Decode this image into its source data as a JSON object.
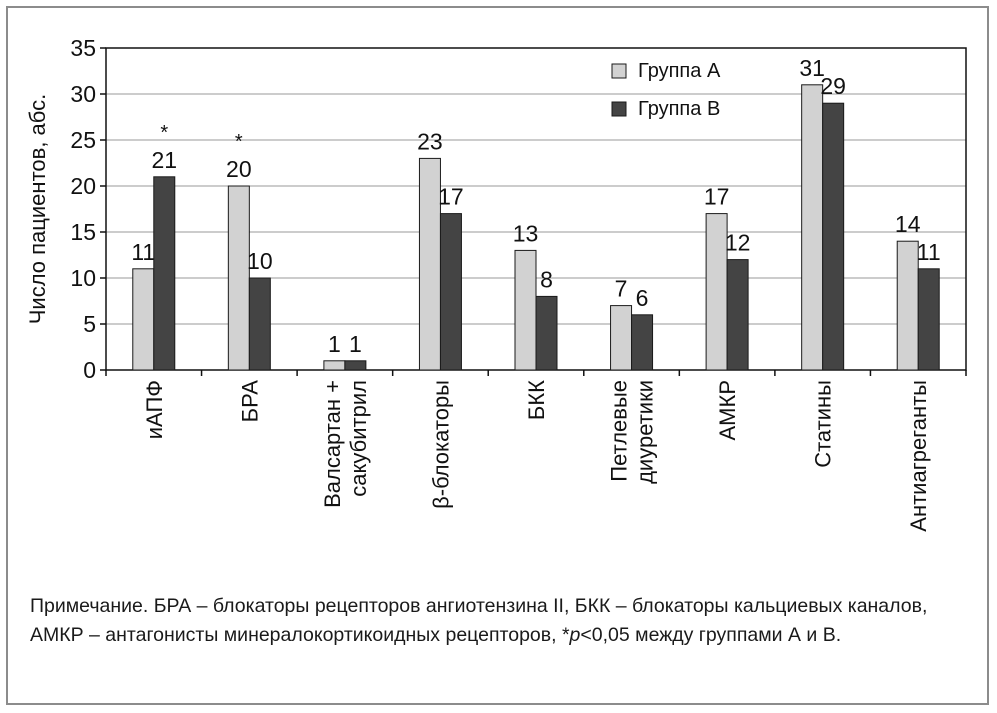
{
  "chart_data": {
    "type": "bar",
    "ylabel": "Число пациентов, абс.",
    "ylim": [
      0,
      35
    ],
    "yticks": [
      0,
      5,
      10,
      15,
      20,
      25,
      30,
      35
    ],
    "grid": true,
    "legend_position": "top-right",
    "categories": [
      [
        "иАПФ"
      ],
      [
        "БРА"
      ],
      [
        "Валсартан +",
        "сакубитрил"
      ],
      [
        "β-блокаторы"
      ],
      [
        "БКК"
      ],
      [
        "Петлевые",
        "диуретики"
      ],
      [
        "АМКР"
      ],
      [
        "Статины"
      ],
      [
        "Антиагреганты"
      ]
    ],
    "series": [
      {
        "name": "Группа А",
        "color": "#d2d2d2",
        "values": [
          11,
          20,
          1,
          23,
          13,
          7,
          17,
          31,
          14
        ]
      },
      {
        "name": "Группа В",
        "color": "#444444",
        "values": [
          21,
          10,
          1,
          17,
          8,
          6,
          12,
          29,
          11
        ]
      }
    ],
    "annotations": [
      {
        "category_index": 0,
        "series_index": 1,
        "text": "*"
      },
      {
        "category_index": 1,
        "series_index": 0,
        "text": "*"
      }
    ]
  },
  "note": {
    "prefix": "Примечание. БРА – блокаторы рецепторов ангиотензина II, БКК – блокаторы кальциевых каналов, АМКР – антагонисты минералокортикоидных рецепторов, *",
    "p_symbol": "p",
    "suffix": "<0,05 между группами А и В."
  }
}
